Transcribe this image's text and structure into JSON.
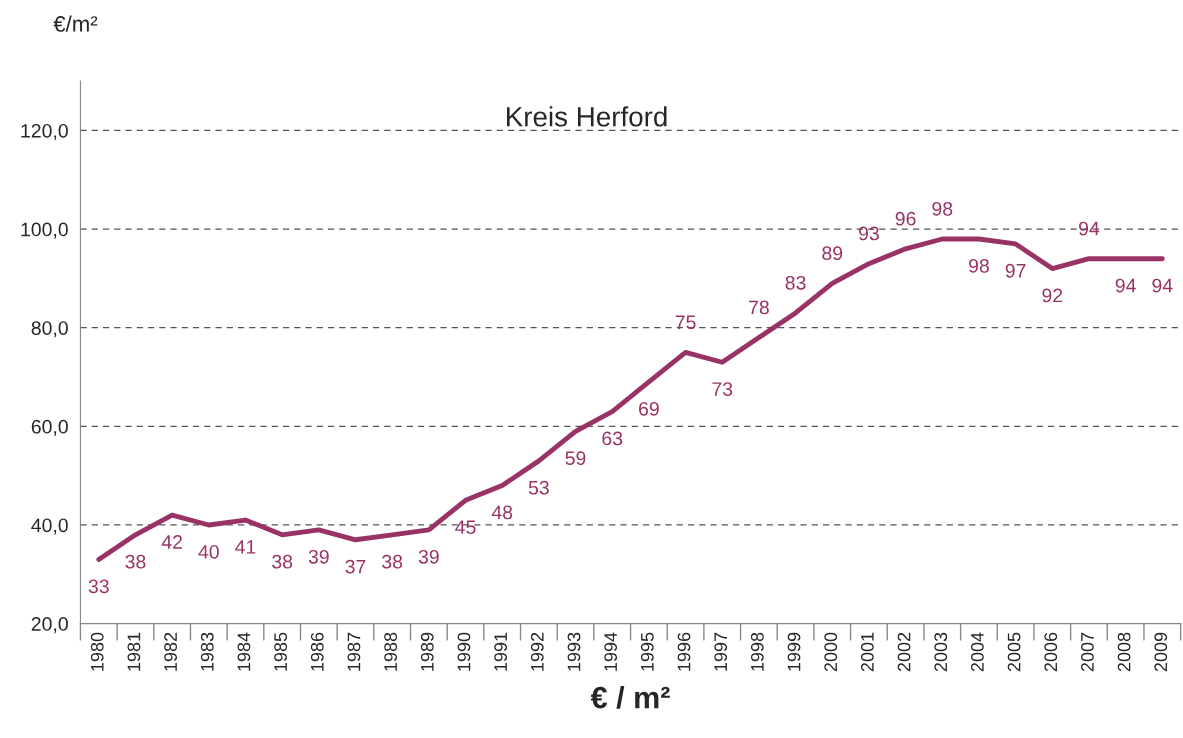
{
  "chart_data": {
    "type": "line",
    "title": "Kreis Herford",
    "ylabel": "€/m²",
    "xlabel": "€ / m²",
    "categories": [
      "1980",
      "1981",
      "1982",
      "1983",
      "1984",
      "1985",
      "1986",
      "1987",
      "1988",
      "1989",
      "1990",
      "1991",
      "1992",
      "1993",
      "1994",
      "1995",
      "1996",
      "1997",
      "1998",
      "1999",
      "2000",
      "2001",
      "2002",
      "2003",
      "2004",
      "2005",
      "2006",
      "2007",
      "2008",
      "2009"
    ],
    "series": [
      {
        "color": "#993366",
        "values": [
          33,
          38,
          42,
          40,
          41,
          38,
          39,
          37,
          38,
          39,
          45,
          48,
          53,
          59,
          63,
          69,
          75,
          73,
          78,
          83,
          89,
          93,
          96,
          98,
          98,
          97,
          92,
          94,
          94,
          94
        ]
      }
    ],
    "ylim": [
      20,
      130
    ],
    "yticks": [
      {
        "value": 20,
        "label": "20,0"
      },
      {
        "value": 40,
        "label": "40,0"
      },
      {
        "value": 60,
        "label": "60,0"
      },
      {
        "value": 80,
        "label": "80,0"
      },
      {
        "value": 100,
        "label": "100,0"
      },
      {
        "value": 120,
        "label": "120,0"
      }
    ],
    "grid": "y",
    "line_style": "solid",
    "marker": "none",
    "data_labels": true,
    "legend": false
  }
}
